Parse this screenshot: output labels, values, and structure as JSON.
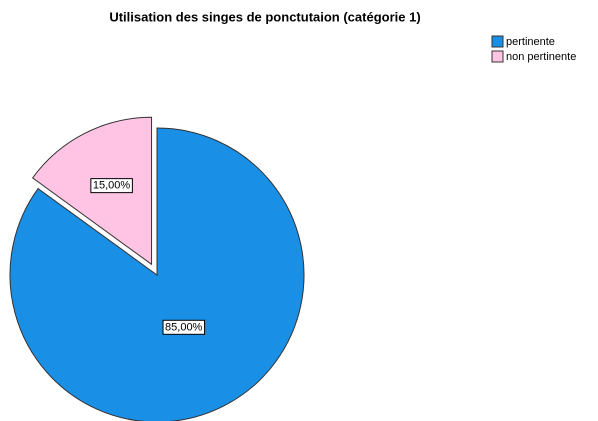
{
  "chart_data": {
    "type": "pie",
    "title": "Utilisation des singes de ponctutaion (catégorie 1)",
    "categories": [
      "pertinente",
      "non pertinente"
    ],
    "values": [
      85,
      15
    ],
    "value_labels": [
      "85,00%",
      "15,00%"
    ],
    "colors": [
      "#1a8fe6",
      "#ffc4e3"
    ],
    "exploded": [
      false,
      true
    ],
    "legend": "top-right"
  }
}
